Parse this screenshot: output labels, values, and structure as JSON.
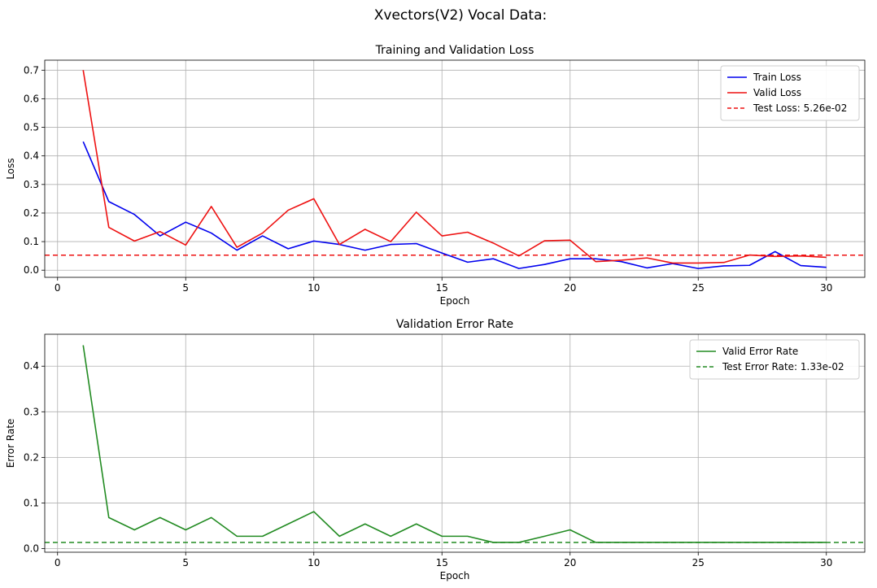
{
  "figure_title": "Xvectors(V2) Vocal Data:",
  "chart_data": [
    {
      "type": "line",
      "title": "Training and Validation Loss",
      "xlabel": "Epoch",
      "ylabel": "Loss",
      "xlim": [
        -0.5,
        31.5
      ],
      "ylim": [
        -0.025,
        0.735
      ],
      "xticks": [
        0,
        5,
        10,
        15,
        20,
        25,
        30
      ],
      "yticks": [
        0.0,
        0.1,
        0.2,
        0.3,
        0.4,
        0.5,
        0.6,
        0.7
      ],
      "grid": true,
      "legend_position": "upper right",
      "x": [
        1,
        2,
        3,
        4,
        5,
        6,
        7,
        8,
        9,
        10,
        11,
        12,
        13,
        14,
        15,
        16,
        17,
        18,
        19,
        20,
        21,
        22,
        23,
        24,
        25,
        26,
        27,
        28,
        29,
        30
      ],
      "series": [
        {
          "name": "Train Loss",
          "color": "#0000ee",
          "values": [
            0.45,
            0.24,
            0.195,
            0.12,
            0.168,
            0.13,
            0.07,
            0.12,
            0.075,
            0.102,
            0.09,
            0.07,
            0.09,
            0.093,
            0.06,
            0.028,
            0.04,
            0.006,
            0.02,
            0.04,
            0.04,
            0.03,
            0.008,
            0.023,
            0.006,
            0.015,
            0.017,
            0.065,
            0.016,
            0.01
          ]
        },
        {
          "name": "Valid Loss",
          "color": "#ee1111",
          "values": [
            0.7,
            0.15,
            0.102,
            0.135,
            0.088,
            0.223,
            0.08,
            0.13,
            0.21,
            0.25,
            0.09,
            0.143,
            0.1,
            0.203,
            0.12,
            0.133,
            0.095,
            0.05,
            0.103,
            0.105,
            0.03,
            0.035,
            0.043,
            0.025,
            0.025,
            0.027,
            0.053,
            0.048,
            0.05,
            0.045
          ]
        }
      ],
      "reference_lines": [
        {
          "label": "Test Loss: 5.26e-02",
          "value": 0.0526,
          "color": "#ee1111",
          "style": "dashed"
        }
      ]
    },
    {
      "type": "line",
      "title": "Validation Error Rate",
      "xlabel": "Epoch",
      "ylabel": "Error Rate",
      "xlim": [
        -0.5,
        31.5
      ],
      "ylim": [
        -0.008,
        0.47
      ],
      "xticks": [
        0,
        5,
        10,
        15,
        20,
        25,
        30
      ],
      "yticks": [
        0.0,
        0.1,
        0.2,
        0.3,
        0.4
      ],
      "grid": true,
      "legend_position": "upper right",
      "x": [
        1,
        2,
        3,
        4,
        5,
        6,
        7,
        8,
        9,
        10,
        11,
        12,
        13,
        14,
        15,
        16,
        17,
        18,
        19,
        20,
        21,
        22,
        23,
        24,
        25,
        26,
        27,
        28,
        29,
        30
      ],
      "series": [
        {
          "name": "Valid Error Rate",
          "color": "#228b22",
          "values": [
            0.446,
            0.068,
            0.041,
            0.068,
            0.041,
            0.068,
            0.027,
            0.027,
            0.054,
            0.081,
            0.027,
            0.054,
            0.027,
            0.054,
            0.027,
            0.027,
            0.0135,
            0.0135,
            0.027,
            0.041,
            0.0135,
            0.0135,
            0.0135,
            0.0135,
            0.0135,
            0.0135,
            0.0135,
            0.0135,
            0.0135,
            0.0135
          ]
        }
      ],
      "reference_lines": [
        {
          "label": "Test Error Rate: 1.33e-02",
          "value": 0.0133,
          "color": "#228b22",
          "style": "dashed"
        }
      ]
    }
  ]
}
